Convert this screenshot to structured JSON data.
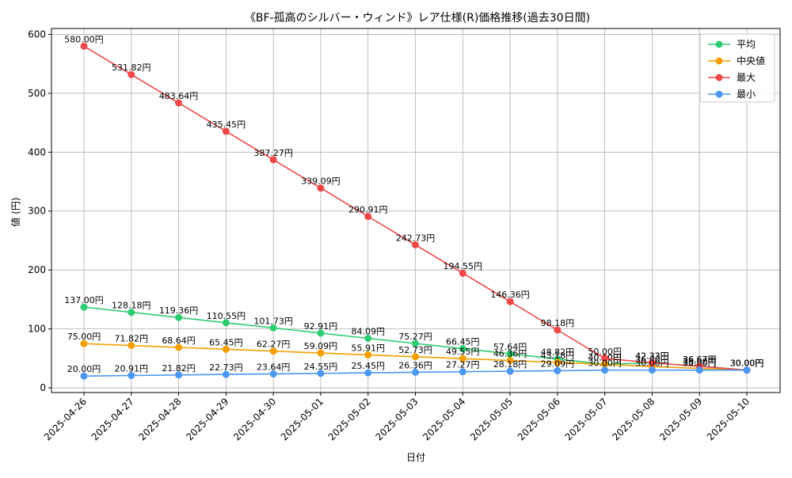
{
  "chart_data": {
    "type": "line",
    "title": "《BF-孤高のシルバー・ウィンド》レア仕様(R)価格推移(過去30日間)",
    "xlabel": "日付",
    "ylabel": "値 (円)",
    "ylim": [
      -8,
      610
    ],
    "yticks": [
      0,
      100,
      200,
      300,
      400,
      500,
      600
    ],
    "grid": true,
    "legend_position": "top-right",
    "value_suffix": "円",
    "categories": [
      "2025-04-26",
      "2025-04-27",
      "2025-04-28",
      "2025-04-29",
      "2025-04-30",
      "2025-05-01",
      "2025-05-02",
      "2025-05-03",
      "2025-05-04",
      "2025-05-05",
      "2025-05-06",
      "2025-05-07",
      "2025-05-08",
      "2025-05-09",
      "2025-05-10"
    ],
    "series": [
      {
        "name": "平均",
        "color": "#2ecc71",
        "values": [
          137.0,
          128.18,
          119.36,
          110.55,
          101.73,
          92.91,
          84.09,
          75.27,
          66.45,
          57.64,
          48.82,
          40.0,
          42.33,
          36.67,
          30.0
        ]
      },
      {
        "name": " 中央値",
        "color": "#f5a000",
        "values": [
          75.0,
          71.82,
          68.64,
          65.45,
          62.27,
          59.09,
          55.91,
          52.73,
          49.55,
          46.36,
          43.18,
          40.0,
          36.0,
          33.0,
          30.0
        ]
      },
      {
        "name": "最大",
        "color": "#f04848",
        "values": [
          580.0,
          531.82,
          483.64,
          435.45,
          387.27,
          339.09,
          290.91,
          242.73,
          194.55,
          146.36,
          98.18,
          50.0,
          42.33,
          36.67,
          30.0
        ]
      },
      {
        "name": "最小",
        "color": "#4b97f2",
        "values": [
          20.0,
          20.91,
          21.82,
          22.73,
          23.64,
          24.55,
          25.45,
          26.36,
          27.27,
          28.18,
          29.09,
          30.0,
          30.0,
          30.0,
          30.0
        ]
      }
    ]
  }
}
